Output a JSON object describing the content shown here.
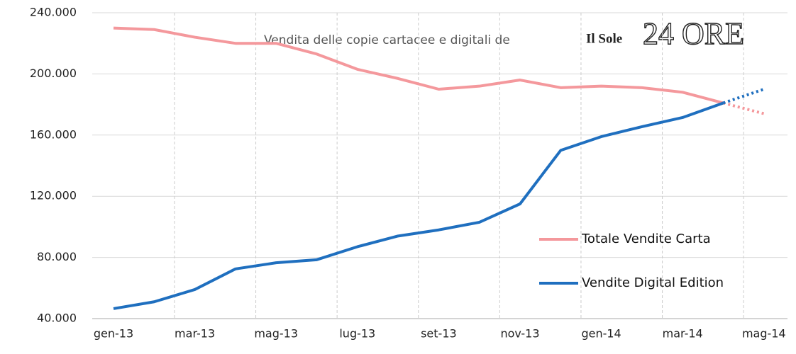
{
  "chart_data": {
    "type": "line",
    "title": "Vendita delle copie cartacee e digitali de",
    "logo_small": "Il Sole",
    "logo_big": "24 ORE",
    "categories": [
      "gen-13",
      null,
      "mar-13",
      null,
      "mag-13",
      null,
      "lug-13",
      null,
      "set-13",
      null,
      "nov-13",
      null,
      "gen-14",
      null,
      "mar-14",
      null,
      "mag-14"
    ],
    "series": [
      {
        "name": "Totale Vendite Carta",
        "color": "#f4989c",
        "values": [
          230000,
          229000,
          224000,
          220000,
          220000,
          213000,
          203000,
          197000,
          190000,
          192000,
          196000,
          191000,
          192000,
          191000,
          188000,
          181000,
          174000
        ]
      },
      {
        "name": "Vendite Digital Edition",
        "color": "#1f6fbf",
        "values": [
          46500,
          51000,
          59000,
          72500,
          76500,
          78500,
          87000,
          94000,
          98000,
          103000,
          115000,
          150000,
          159000,
          165500,
          171500,
          181000,
          190000
        ]
      }
    ],
    "projected_from": 15,
    "ylim": [
      40000,
      240000
    ],
    "yticks": [
      {
        "value": 40000,
        "label": "40.000"
      },
      {
        "value": 80000,
        "label": "80.000"
      },
      {
        "value": 120000,
        "label": "120.000"
      },
      {
        "value": 160000,
        "label": "160.000"
      },
      {
        "value": 200000,
        "label": "200.000"
      },
      {
        "value": 240000,
        "label": "240.000"
      }
    ],
    "grid": true
  }
}
